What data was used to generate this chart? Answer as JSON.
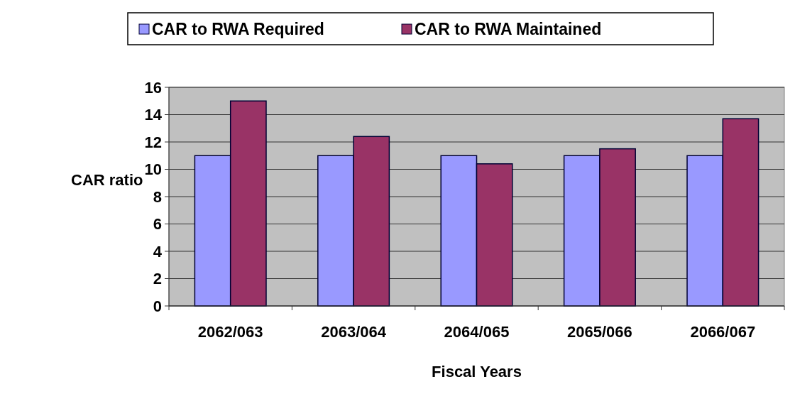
{
  "chart_data": {
    "type": "bar",
    "xlabel": "Fiscal Years",
    "ylabel": "CAR ratio",
    "categories": [
      "2062/063",
      "2063/064",
      "2064/065",
      "2065/066",
      "2066/067"
    ],
    "series": [
      {
        "name": "CAR to RWA Required",
        "color": "#9999ff",
        "values": [
          11,
          11,
          11,
          11,
          11
        ]
      },
      {
        "name": "CAR to RWA Maintained",
        "color": "#993366",
        "values": [
          15,
          12.4,
          10.4,
          11.5,
          13.7
        ]
      }
    ],
    "ylim": [
      0,
      16
    ],
    "yticks": [
      0,
      2,
      4,
      6,
      8,
      10,
      12,
      14,
      16
    ],
    "grid": "y",
    "legend": "top"
  }
}
